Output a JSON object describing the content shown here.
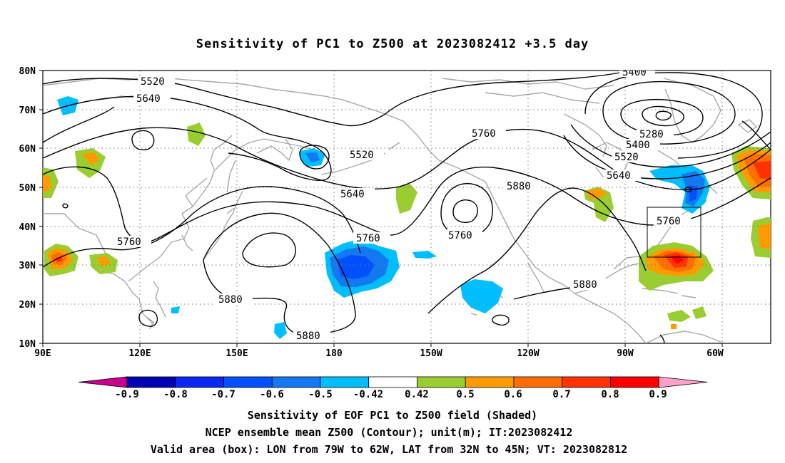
{
  "title": "Sensitivity of PC1 to Z500 at 2023082412 +3.5 day",
  "map": {
    "lat_ticks": [
      "80N",
      "70N",
      "60N",
      "50N",
      "40N",
      "30N",
      "20N",
      "10N"
    ],
    "lon_ticks": [
      "90E",
      "120E",
      "150E",
      "180",
      "150W",
      "120W",
      "90W",
      "60W"
    ],
    "lon_range": [
      90,
      315
    ],
    "lat_range": [
      10,
      80
    ],
    "gridlines": "dotted",
    "valid_box": {
      "lon_west": -79,
      "lon_east": -62,
      "lat_south": 32,
      "lat_north": 45
    }
  },
  "contour_labels": [
    "5400",
    "5520",
    "5640",
    "5280",
    "5400",
    "5520",
    "5640",
    "5760",
    "5520",
    "5640",
    "5760",
    "5880",
    "5760",
    "5760",
    "5760",
    "5880",
    "5880",
    "5880"
  ],
  "colorbar": {
    "labels": [
      "-0.9",
      "-0.8",
      "-0.7",
      "-0.6",
      "-0.5",
      "-0.42",
      "0.42",
      "0.5",
      "0.6",
      "0.7",
      "0.8",
      "0.9"
    ],
    "colors": [
      "#c8008c",
      "#0000b4",
      "#0a28f0",
      "#0050ff",
      "#1478f0",
      "#00beff",
      "#ffffff",
      "#9acd32",
      "#ff9b00",
      "#ff6e00",
      "#ff3200",
      "#ff0000",
      "#ffa0c8"
    ]
  },
  "footer": {
    "line1": "Sensitivity of EOF PC1 to Z500 field (Shaded)",
    "line2": "NCEP ensemble mean Z500 (Contour); unit(m); IT:2023082412",
    "line3": "Valid area (box): LON from 79W to 62W, LAT from 32N to 45N; VT: 2023082812"
  }
}
